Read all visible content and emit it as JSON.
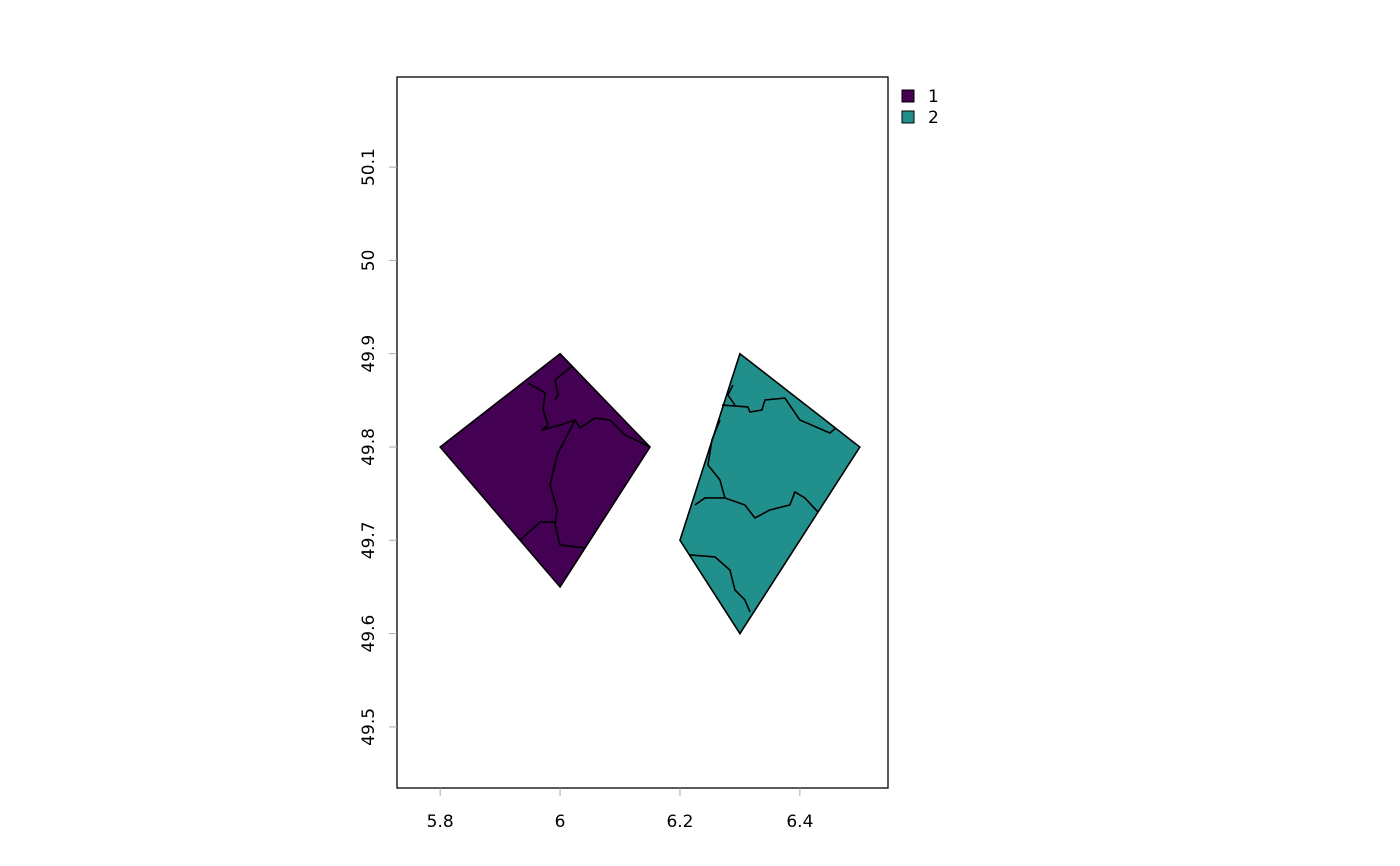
{
  "chart_data": {
    "type": "map",
    "xlim": [
      5.728,
      6.547
    ],
    "ylim": [
      49.4345,
      50.1966
    ],
    "xticks": [
      5.8,
      6,
      6.2,
      6.4
    ],
    "yticks": [
      49.5,
      49.6,
      49.7,
      49.8,
      49.9,
      50,
      50.1
    ],
    "legend": "top-right-outside",
    "series": [
      {
        "name": "1",
        "color": "#440154",
        "x": [
          5.8,
          6.0,
          6.15,
          6.0
        ],
        "y": [
          49.8,
          49.9,
          49.8,
          49.65
        ],
        "boundaries": [
          {
            "x": [
              5.9467,
              5.975,
              5.9717,
              5.98,
              5.97,
              6.0,
              6.025,
              6.0333,
              6.0583,
              6.0833,
              6.1083,
              6.15
            ],
            "y": [
              49.8686,
              49.8579,
              49.8397,
              49.8236,
              49.8182,
              49.8236,
              49.8289,
              49.8204,
              49.8311,
              49.8289,
              49.8129,
              49.8
            ]
          },
          {
            "x": [
              6.02,
              5.9917,
              5.9967,
              5.9917
            ],
            "y": [
              49.8867,
              49.872,
              49.856,
              49.851
            ]
          },
          {
            "x": [
              6.025,
              5.995,
              5.9833,
              5.995,
              5.9917,
              6.0,
              6.0417
            ],
            "y": [
              49.8289,
              49.7914,
              49.7593,
              49.7325,
              49.7164,
              49.695,
              49.6918
            ]
          },
          {
            "x": [
              5.9333,
              5.9667,
              5.9917
            ],
            "y": [
              49.7,
              49.7196,
              49.7196
            ]
          }
        ]
      },
      {
        "name": "2",
        "color": "#21908c",
        "x": [
          6.3,
          6.5,
          6.3,
          6.2
        ],
        "y": [
          49.9,
          49.8,
          49.6,
          49.7
        ],
        "boundaries": [
          {
            "x": [
              6.27,
              6.3133,
              6.3167,
              6.3367,
              6.3417,
              6.375,
              6.4,
              6.45,
              6.46
            ],
            "y": [
              49.845,
              49.8429,
              49.8375,
              49.8396,
              49.8504,
              49.8525,
              49.8289,
              49.815,
              49.8204
            ]
          },
          {
            "x": [
              6.2883,
              6.28,
              6.2917
            ],
            "y": [
              49.8664,
              49.8557,
              49.845
            ]
          },
          {
            "x": [
              6.2667,
              6.2533,
              6.2467,
              6.2667,
              6.275,
              6.2417,
              6.225
            ],
            "y": [
              49.8289,
              49.8075,
              49.7807,
              49.7646,
              49.7454,
              49.7454,
              49.7379
            ]
          },
          {
            "x": [
              6.275,
              6.3083,
              6.325,
              6.35,
              6.3833,
              6.3917,
              6.4083,
              6.43
            ],
            "y": [
              49.7454,
              49.7379,
              49.7239,
              49.7325,
              49.7379,
              49.7518,
              49.7454,
              49.7304
            ]
          },
          {
            "x": [
              6.2167,
              6.2583,
              6.2833,
              6.2917,
              6.3083,
              6.3167
            ],
            "y": [
              49.6843,
              49.6822,
              49.6682,
              49.6468,
              49.6361,
              49.6232
            ]
          }
        ]
      }
    ]
  }
}
